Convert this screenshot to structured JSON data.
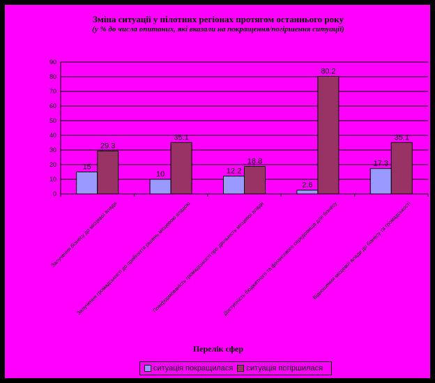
{
  "chart_data": {
    "type": "bar",
    "title": "Зміна ситуації у пілотних регіонах протягом останнього року",
    "subtitle": "(у % до числа опитаних, які вказали на покращення/погіршення ситуації)",
    "xlabel": "Перелік сфер",
    "ylabel": "",
    "ylim": [
      0,
      90
    ],
    "yticks": [
      0,
      10,
      20,
      30,
      40,
      50,
      60,
      70,
      80,
      90
    ],
    "grid": true,
    "legend_position": "bottom",
    "categories": [
      "Залучення бізнесу до місцевої влади",
      "Залучення громадськості до прийняття рішень місцевою владою",
      "Поінформованість громадськості про діяльність місцевої влади",
      "Доступність бюджетного та фінансового середовища для бізнесу",
      "Відношення місцевої влади до бізнесу та громадськості"
    ],
    "series": [
      {
        "name": "ситуація покращилася",
        "values": [
          15,
          10,
          12.2,
          2.6,
          17.3
        ],
        "labels": [
          "15",
          "10",
          "12.2",
          "2.6",
          "17.3"
        ]
      },
      {
        "name": "ситуація погіршилася",
        "values": [
          29.3,
          35.1,
          18.8,
          80.2,
          35.1
        ],
        "labels": [
          "29.3",
          "35.1",
          "18.8",
          "80.2",
          "35.1"
        ]
      }
    ],
    "colors": {
      "background": "#ff00ff",
      "series1": "#9999ff",
      "series2": "#993366",
      "grid": "#000000"
    }
  }
}
